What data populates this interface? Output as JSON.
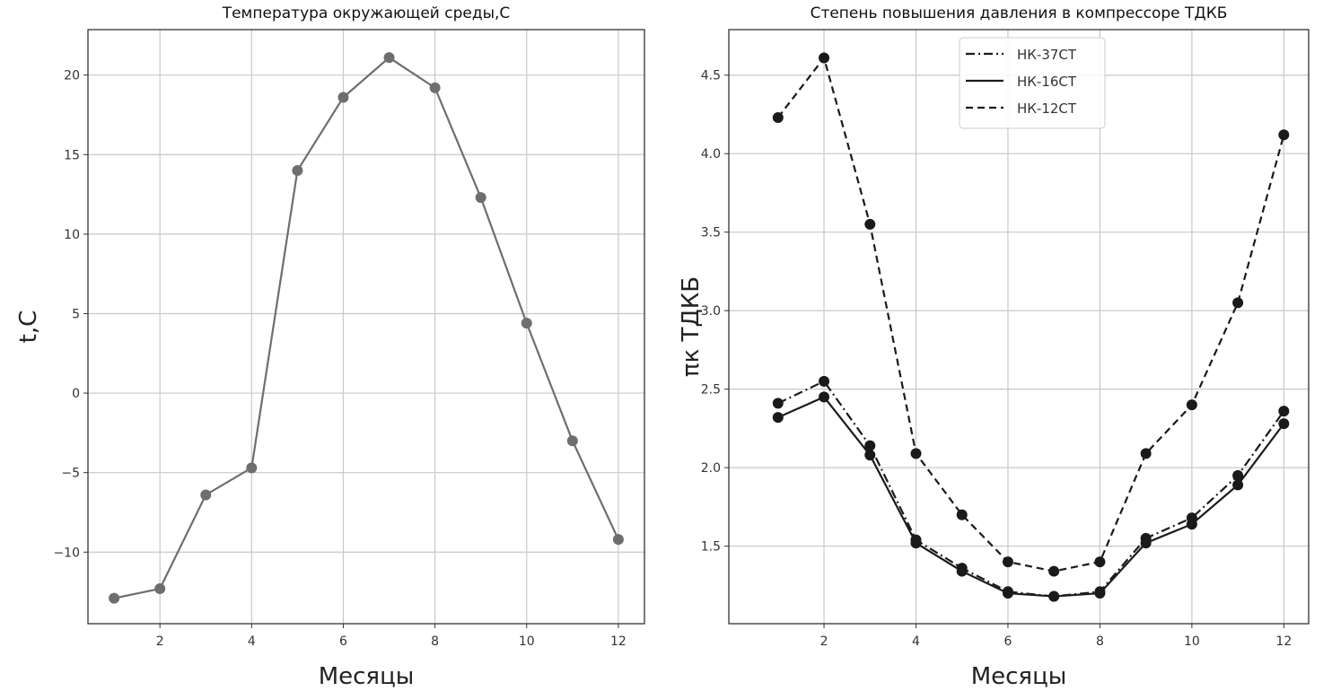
{
  "chart_data": [
    {
      "type": "line",
      "title": "Температура окружающей среды,С",
      "xlabel": "Месяцы",
      "ylabel": "t,C",
      "x": [
        1,
        2,
        3,
        4,
        5,
        6,
        7,
        8,
        9,
        10,
        11,
        12
      ],
      "xticks": [
        2,
        4,
        6,
        8,
        10,
        12
      ],
      "yticks": [
        -10,
        -5,
        0,
        5,
        10,
        15,
        20
      ],
      "xlim": [
        0.43,
        12.57
      ],
      "ylim": [
        -14.5,
        22.86
      ],
      "grid": true,
      "series": [
        {
          "values": [
            -12.9,
            -12.3,
            -6.4,
            -4.7,
            14.0,
            18.6,
            21.1,
            19.2,
            12.3,
            4.4,
            -3.0,
            -9.2
          ],
          "color": "#6e6e6e",
          "dash": "solid"
        }
      ]
    },
    {
      "type": "line",
      "title": "Степень повышения давления в компрессоре ТДКБ",
      "xlabel": "Месяцы",
      "ylabel": "πк ТДКБ",
      "x": [
        1,
        2,
        3,
        4,
        5,
        6,
        7,
        8,
        9,
        10,
        11,
        12
      ],
      "xticks": [
        2,
        4,
        6,
        8,
        10,
        12
      ],
      "yticks": [
        1.5,
        2.0,
        2.5,
        3.0,
        3.5,
        4.0,
        4.5
      ],
      "xlim": [
        -0.07,
        12.54
      ],
      "ylim": [
        1.006,
        4.79
      ],
      "grid": true,
      "legend": "top-center",
      "series": [
        {
          "name": "НК-37СТ",
          "values": [
            2.41,
            2.55,
            2.14,
            1.54,
            1.36,
            1.21,
            1.18,
            1.21,
            1.55,
            1.68,
            1.95,
            2.36
          ],
          "color": "#1a1a1a",
          "dash": "dashdot"
        },
        {
          "name": "НК-16СТ",
          "values": [
            2.32,
            2.45,
            2.08,
            1.52,
            1.34,
            1.2,
            1.18,
            1.2,
            1.52,
            1.64,
            1.89,
            2.28
          ],
          "color": "#1a1a1a",
          "dash": "solid"
        },
        {
          "name": "НК-12СТ",
          "values": [
            4.23,
            4.61,
            3.55,
            2.09,
            1.7,
            1.4,
            1.34,
            1.4,
            2.09,
            2.4,
            3.05,
            4.12
          ],
          "color": "#1a1a1a",
          "dash": "dashed"
        }
      ]
    }
  ]
}
